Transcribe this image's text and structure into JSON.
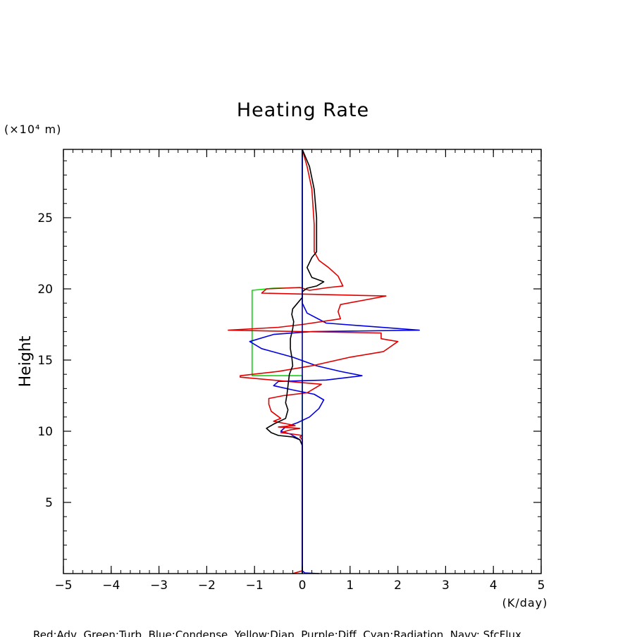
{
  "chart_data": {
    "type": "line",
    "title": "Heating Rate",
    "ylabel": "Height",
    "y_unit_label": "(×10⁴ m)",
    "x_unit_label": "(K/day)",
    "legend_text": "Red:Adv, Green:Turb, Blue:Condense, Yellow:Diap, Purple:Diff, Cyan:Radiation, Navy: SfcFlux",
    "xlim": [
      -5,
      5
    ],
    "ylim": [
      0,
      29.8
    ],
    "xticks": [
      -5,
      -4,
      -3,
      -2,
      -1,
      0,
      1,
      2,
      3,
      4,
      5
    ],
    "yticks": [
      5,
      10,
      15,
      20,
      25
    ],
    "grid": false,
    "series": [
      {
        "name": "Green",
        "color": "#00e000",
        "points": [
          [
            0,
            0
          ],
          [
            0,
            13.9
          ],
          [
            -1.05,
            13.9
          ],
          [
            -1.05,
            14.1
          ],
          [
            -1.05,
            19.9
          ],
          [
            -0.6,
            20.05
          ],
          [
            0,
            20.1
          ],
          [
            0,
            29.8
          ]
        ]
      },
      {
        "name": "Blue",
        "color": "#0000e0",
        "points": [
          [
            0.35,
            0
          ],
          [
            0.05,
            0.05
          ],
          [
            0,
            0.2
          ],
          [
            0,
            9.0
          ],
          [
            -0.05,
            9.4
          ],
          [
            -0.25,
            9.8
          ],
          [
            -0.45,
            10.0
          ],
          [
            -0.35,
            10.3
          ],
          [
            -0.1,
            10.6
          ],
          [
            0.15,
            11.0
          ],
          [
            0.35,
            11.6
          ],
          [
            0.45,
            12.2
          ],
          [
            0.25,
            12.6
          ],
          [
            -0.2,
            12.9
          ],
          [
            -0.6,
            13.2
          ],
          [
            -0.5,
            13.5
          ],
          [
            0.5,
            13.6
          ],
          [
            1.25,
            13.9
          ],
          [
            0.8,
            14.2
          ],
          [
            0.3,
            14.6
          ],
          [
            -0.2,
            15.2
          ],
          [
            -0.85,
            15.8
          ],
          [
            -1.1,
            16.3
          ],
          [
            -0.6,
            16.8
          ],
          [
            0.2,
            17.0
          ],
          [
            2.45,
            17.1
          ],
          [
            0.5,
            17.6
          ],
          [
            0.1,
            18.3
          ],
          [
            0,
            19.0
          ],
          [
            0,
            29.8
          ]
        ]
      },
      {
        "name": "Red",
        "color": "#e00000",
        "points": [
          [
            -0.2,
            0
          ],
          [
            0,
            0.2
          ],
          [
            0,
            4.0
          ],
          [
            0,
            9.0
          ],
          [
            0,
            9.4
          ],
          [
            -0.05,
            9.6
          ],
          [
            0,
            9.7
          ],
          [
            -0.2,
            9.8
          ],
          [
            -0.45,
            9.9
          ],
          [
            -0.25,
            10.1
          ],
          [
            -0.05,
            10.2
          ],
          [
            -0.5,
            10.3
          ],
          [
            -0.15,
            10.4
          ],
          [
            -0.3,
            10.5
          ],
          [
            -0.6,
            10.7
          ],
          [
            -0.45,
            10.9
          ],
          [
            -0.65,
            11.4
          ],
          [
            -0.7,
            11.9
          ],
          [
            -0.7,
            12.3
          ],
          [
            -0.4,
            12.5
          ],
          [
            0.1,
            12.7
          ],
          [
            0.4,
            13.3
          ],
          [
            -0.3,
            13.5
          ],
          [
            -1.3,
            13.8
          ],
          [
            -1.3,
            13.9
          ],
          [
            -0.5,
            14.2
          ],
          [
            0.2,
            14.6
          ],
          [
            1.0,
            15.2
          ],
          [
            1.7,
            15.6
          ],
          [
            2.0,
            16.3
          ],
          [
            1.65,
            16.5
          ],
          [
            1.65,
            16.9
          ],
          [
            -1.55,
            17.1
          ],
          [
            -0.5,
            17.3
          ],
          [
            0,
            17.5
          ],
          [
            0.8,
            17.9
          ],
          [
            0.75,
            18.4
          ],
          [
            0.8,
            18.9
          ],
          [
            1.75,
            19.5
          ],
          [
            -0.85,
            19.7
          ],
          [
            -0.75,
            20.0
          ],
          [
            -0.05,
            20.1
          ],
          [
            0.15,
            19.9
          ],
          [
            0.55,
            20.1
          ],
          [
            0.85,
            20.2
          ],
          [
            0.75,
            20.9
          ],
          [
            0.55,
            21.5
          ],
          [
            0.35,
            22.0
          ],
          [
            0.25,
            22.6
          ],
          [
            0.25,
            24.5
          ],
          [
            0.2,
            27.0
          ],
          [
            0.1,
            28.6
          ],
          [
            0,
            29.8
          ]
        ]
      },
      {
        "name": "Black",
        "color": "#000000",
        "points": [
          [
            0,
            0
          ],
          [
            0,
            9.0
          ],
          [
            -0.05,
            9.4
          ],
          [
            -0.2,
            9.6
          ],
          [
            -0.5,
            9.7
          ],
          [
            -0.65,
            9.9
          ],
          [
            -0.75,
            10.2
          ],
          [
            -0.6,
            10.5
          ],
          [
            -0.35,
            10.9
          ],
          [
            -0.3,
            11.5
          ],
          [
            -0.35,
            12.0
          ],
          [
            -0.32,
            12.6
          ],
          [
            -0.3,
            13.2
          ],
          [
            -0.27,
            14.0
          ],
          [
            -0.2,
            14.6
          ],
          [
            -0.22,
            15.2
          ],
          [
            -0.25,
            15.8
          ],
          [
            -0.25,
            16.5
          ],
          [
            -0.2,
            17.2
          ],
          [
            -0.18,
            17.7
          ],
          [
            -0.22,
            18.2
          ],
          [
            -0.2,
            18.6
          ],
          [
            -0.1,
            19.0
          ],
          [
            0,
            19.4
          ],
          [
            0,
            19.8
          ],
          [
            0.1,
            20.05
          ],
          [
            0.3,
            20.2
          ],
          [
            0.45,
            20.5
          ],
          [
            0.2,
            20.8
          ],
          [
            0.1,
            21.5
          ],
          [
            0.2,
            22.2
          ],
          [
            0.3,
            22.6
          ],
          [
            0.3,
            25.0
          ],
          [
            0.25,
            27.0
          ],
          [
            0.15,
            28.6
          ],
          [
            0,
            29.8
          ]
        ]
      },
      {
        "name": "Navy",
        "color": "#000080",
        "points": [
          [
            0,
            0
          ],
          [
            0,
            29.8
          ]
        ]
      }
    ]
  }
}
